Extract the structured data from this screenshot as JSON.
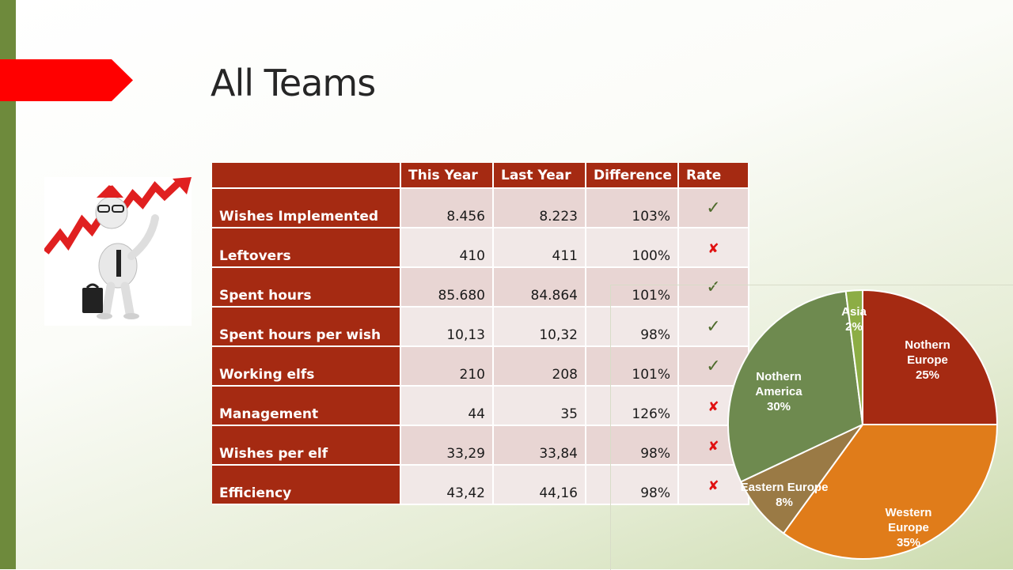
{
  "slide": {
    "title": "All Teams",
    "colors": {
      "accent_bar": "#6e8a3c",
      "arrow": "#ff0000",
      "table_header": "#a52a12"
    },
    "image": "businessman-with-rising-chart-clipart"
  },
  "table": {
    "headers": [
      "",
      "This Year",
      "Last Year",
      "Difference",
      "Rate"
    ],
    "rows": [
      {
        "label": "Wishes Implemented",
        "this_year": "8.456",
        "last_year": "8.223",
        "difference": "103%",
        "rate": "check-icon"
      },
      {
        "label": "Leftovers",
        "this_year": "410",
        "last_year": "411",
        "difference": "100%",
        "rate": "cross-icon"
      },
      {
        "label": "Spent hours",
        "this_year": "85.680",
        "last_year": "84.864",
        "difference": "101%",
        "rate": "check-icon"
      },
      {
        "label": "Spent hours per wish",
        "this_year": "10,13",
        "last_year": "10,32",
        "difference": "98%",
        "rate": "check-icon"
      },
      {
        "label": "Working elfs",
        "this_year": "210",
        "last_year": "208",
        "difference": "101%",
        "rate": "check-icon"
      },
      {
        "label": "Management",
        "this_year": "44",
        "last_year": "35",
        "difference": "126%",
        "rate": "cross-icon"
      },
      {
        "label": "Wishes per elf",
        "this_year": "33,29",
        "last_year": "33,84",
        "difference": "98%",
        "rate": "cross-icon"
      },
      {
        "label": "Efficiency",
        "this_year": "43,42",
        "last_year": "44,16",
        "difference": "98%",
        "rate": "cross-icon"
      }
    ]
  },
  "chart_data": {
    "type": "pie",
    "slices": [
      {
        "label": "Nothern Europe",
        "pct_label": "25%",
        "value": 25,
        "color": "#a52a12"
      },
      {
        "label": "Western Europe",
        "pct_label": "35%",
        "value": 35,
        "color": "#e07c1a"
      },
      {
        "label": "Eastern Europe",
        "pct_label": "8%",
        "value": 8,
        "color": "#9a7a45"
      },
      {
        "label": "Nothern America",
        "pct_label": "30%",
        "value": 30,
        "color": "#6e8a4f"
      },
      {
        "label": "Asia",
        "pct_label": "2%",
        "value": 2,
        "color": "#8cad45"
      }
    ]
  }
}
